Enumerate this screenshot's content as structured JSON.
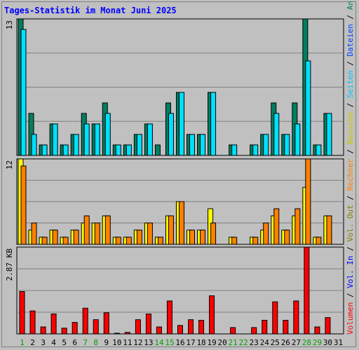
{
  "title": "Tages-Statistik im Monat Juni 2025",
  "colors": {
    "anfragen": "#007f5f",
    "dateien": "#00e0ff",
    "seiten": "#00c8ff",
    "besuche": "#ffff00",
    "rechner": "#ff8000",
    "volumen": "#ff0000",
    "weekend": "#00a000",
    "weekday": "#000000",
    "vol_in": "#0000ff",
    "vol_out": "#808000"
  },
  "legend": {
    "top": [
      {
        "text": "Anfragen",
        "color": "#007f5f"
      },
      {
        "text": "Dateien",
        "color": "#0040ff"
      },
      {
        "text": "Seiten",
        "color": "#00c8ff"
      },
      {
        "text": "Besuche",
        "color": "#c8c800"
      },
      {
        "text": "Rechner",
        "color": "#ff8000"
      },
      {
        "text": "Vol. Out",
        "color": "#808000"
      },
      {
        "text": "Vol. In",
        "color": "#0000ff"
      },
      {
        "text": "Volumen",
        "color": "#ff0000"
      }
    ],
    "separator": "/"
  },
  "chart_data": [
    {
      "type": "bar",
      "panel": "top",
      "max_label": "13",
      "ylim": [
        0,
        13
      ],
      "categories": [
        "1",
        "2",
        "3",
        "4",
        "5",
        "6",
        "7",
        "8",
        "9",
        "10",
        "11",
        "12",
        "13",
        "14",
        "15",
        "16",
        "17",
        "18",
        "19",
        "20",
        "21",
        "22",
        "23",
        "24",
        "25",
        "26",
        "27",
        "28",
        "29",
        "30",
        "31"
      ],
      "series": [
        {
          "name": "Anfragen",
          "values": [
            13,
            4,
            1,
            3,
            1,
            2,
            4,
            3,
            5,
            1,
            1,
            2,
            3,
            1,
            5,
            6,
            2,
            2,
            6,
            0,
            1,
            0,
            1,
            2,
            5,
            2,
            5,
            13,
            1,
            4,
            0
          ]
        },
        {
          "name": "Dateien",
          "values": [
            12,
            2,
            1,
            3,
            1,
            2,
            3,
            3,
            4,
            1,
            1,
            2,
            3,
            0,
            4,
            6,
            2,
            2,
            6,
            0,
            1,
            0,
            1,
            2,
            4,
            2,
            3,
            9,
            1,
            4,
            0
          ]
        }
      ]
    },
    {
      "type": "bar",
      "panel": "middle",
      "max_label": "12",
      "ylim": [
        0,
        12
      ],
      "categories": [
        "1",
        "2",
        "3",
        "4",
        "5",
        "6",
        "7",
        "8",
        "9",
        "10",
        "11",
        "12",
        "13",
        "14",
        "15",
        "16",
        "17",
        "18",
        "19",
        "20",
        "21",
        "22",
        "23",
        "24",
        "25",
        "26",
        "27",
        "28",
        "29",
        "30",
        "31"
      ],
      "series": [
        {
          "name": "Besuche",
          "values": [
            12,
            2,
            1,
            2,
            1,
            2,
            3,
            3,
            4,
            1,
            1,
            2,
            3,
            1,
            4,
            6,
            2,
            2,
            5,
            0,
            1,
            0,
            1,
            2,
            4,
            2,
            4,
            8,
            1,
            4,
            0
          ]
        },
        {
          "name": "Rechner",
          "values": [
            11,
            3,
            1,
            2,
            1,
            2,
            4,
            3,
            4,
            1,
            1,
            2,
            3,
            1,
            4,
            6,
            2,
            2,
            3,
            0,
            1,
            0,
            1,
            3,
            5,
            2,
            5,
            12,
            1,
            4,
            0
          ]
        }
      ]
    },
    {
      "type": "bar",
      "panel": "bottom",
      "max_label": "2.87 KB",
      "ylim": [
        0,
        2.87
      ],
      "categories": [
        "1",
        "2",
        "3",
        "4",
        "5",
        "6",
        "7",
        "8",
        "9",
        "10",
        "11",
        "12",
        "13",
        "14",
        "15",
        "16",
        "17",
        "18",
        "19",
        "20",
        "21",
        "22",
        "23",
        "24",
        "25",
        "26",
        "27",
        "28",
        "29",
        "30",
        "31"
      ],
      "series": [
        {
          "name": "Volumen",
          "values": [
            1.4,
            0.76,
            0.23,
            0.66,
            0.19,
            0.38,
            0.85,
            0.47,
            0.7,
            0.02,
            0.05,
            0.47,
            0.66,
            0.23,
            1.09,
            0.28,
            0.47,
            0.45,
            1.26,
            0,
            0.21,
            0,
            0.21,
            0.45,
            1.06,
            0.45,
            1.09,
            2.87,
            0.23,
            0.54,
            0
          ]
        }
      ]
    }
  ],
  "weekend_days": [
    1,
    7,
    8,
    14,
    15,
    21,
    22,
    28,
    29
  ]
}
